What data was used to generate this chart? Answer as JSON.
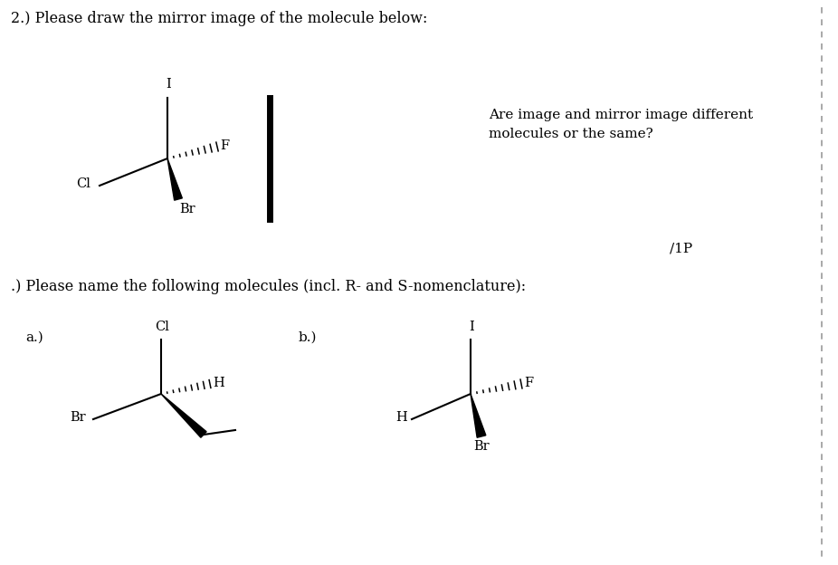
{
  "title_text": "2.) Please draw the mirror image of the molecule below:",
  "section3_text": ".) Please name the following molecules (incl. R- and S-nomenclature):",
  "right_question": "Are image and mirror image different\nmolecules or the same?",
  "score": "/1P",
  "label_a": "a.)",
  "label_b": "b.)",
  "bg_color": "#ffffff",
  "text_color": "#000000",
  "font_size_title": 11.5,
  "font_size_label": 11,
  "font_size_atom": 10.5,
  "font_size_score": 11
}
